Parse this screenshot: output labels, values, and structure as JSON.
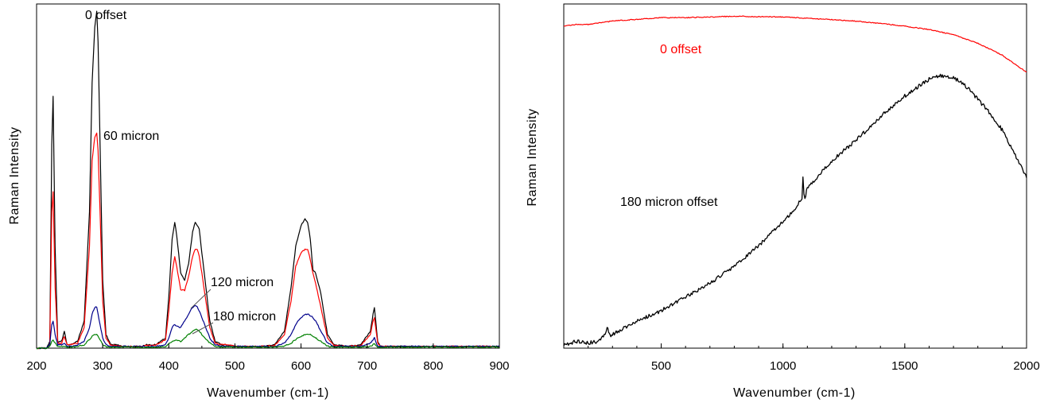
{
  "chart_data": [
    {
      "type": "line",
      "xlabel": "Wavenumber (cm-1)",
      "ylabel": "Raman Intensity",
      "xlim": [
        200,
        900
      ],
      "ylim": [
        0,
        100
      ],
      "xticks": [
        "200",
        "300",
        "400",
        "500",
        "600",
        "700",
        "800",
        "900"
      ],
      "grid": false,
      "annotations": [
        "0 offset",
        "60 micron",
        "120 micron",
        "180 micron"
      ],
      "series": [
        {
          "color": "#000000",
          "x": [
            200,
            215,
            220,
            223,
            225,
            228,
            232,
            238,
            242,
            246,
            252,
            262,
            272,
            280,
            284,
            288,
            291,
            293,
            296,
            300,
            305,
            312,
            320,
            330,
            345,
            360,
            365,
            380,
            395,
            400,
            405,
            409,
            412,
            418,
            424,
            430,
            436,
            440,
            443,
            446,
            450,
            456,
            462,
            470,
            480,
            490,
            500,
            520,
            540,
            560,
            575,
            585,
            592,
            600,
            606,
            610,
            614,
            618,
            622,
            630,
            640,
            650,
            670,
            690,
            705,
            709,
            711,
            713,
            716,
            720,
            740,
            770,
            800,
            830,
            860,
            900
          ],
          "y": [
            0,
            0,
            2,
            60,
            74,
            30,
            2,
            2,
            5,
            1,
            1,
            2,
            8,
            40,
            78,
            94,
            99,
            90,
            60,
            20,
            4,
            1,
            1,
            0.5,
            0.5,
            0.5,
            1,
            1,
            3,
            15,
            32,
            37,
            33,
            22,
            20,
            25,
            34,
            37,
            36,
            35,
            28,
            18,
            8,
            2,
            1,
            1,
            0.5,
            0.5,
            0.5,
            1,
            5,
            18,
            30,
            36,
            38,
            37,
            32,
            23,
            22,
            16,
            4,
            1,
            0.5,
            1,
            5,
            10,
            12,
            8,
            2,
            0.5,
            0.5,
            0.5,
            0.5,
            0.5,
            0.5,
            0.5
          ]
        },
        {
          "color": "#ff0000",
          "x": [
            200,
            215,
            220,
            223,
            225,
            228,
            232,
            238,
            242,
            246,
            252,
            262,
            272,
            280,
            284,
            288,
            291,
            293,
            296,
            300,
            305,
            312,
            320,
            330,
            345,
            360,
            365,
            380,
            395,
            400,
            405,
            409,
            412,
            418,
            424,
            430,
            436,
            440,
            443,
            446,
            450,
            456,
            462,
            470,
            480,
            490,
            500,
            520,
            540,
            560,
            575,
            585,
            592,
            600,
            606,
            610,
            614,
            618,
            622,
            630,
            640,
            650,
            670,
            690,
            705,
            709,
            711,
            713,
            716,
            720,
            740,
            770,
            800,
            830,
            860,
            900
          ],
          "y": [
            0,
            0,
            1,
            40,
            46,
            18,
            1.5,
            1.5,
            3.5,
            1,
            1,
            1.5,
            6,
            30,
            55,
            62,
            63,
            58,
            40,
            14,
            3,
            0.8,
            0.8,
            0.5,
            0.5,
            0.5,
            0.8,
            0.8,
            2.5,
            11,
            22,
            27,
            24,
            17,
            17,
            21,
            27,
            29,
            29,
            27,
            22,
            14,
            6,
            1.5,
            1,
            1,
            0.5,
            0.5,
            0.5,
            0.8,
            4,
            14,
            24,
            28,
            29,
            29,
            26,
            22,
            19,
            12,
            3,
            0.8,
            0.5,
            0.8,
            4,
            8,
            9,
            6,
            1.5,
            0.5,
            0.5,
            0.5,
            0.5,
            0.5,
            0.5,
            0.5
          ]
        },
        {
          "color": "#00008b",
          "x": [
            200,
            215,
            220,
            223,
            225,
            228,
            232,
            238,
            242,
            246,
            252,
            262,
            272,
            280,
            284,
            288,
            291,
            293,
            296,
            300,
            305,
            312,
            320,
            330,
            345,
            360,
            365,
            380,
            395,
            400,
            405,
            409,
            412,
            418,
            424,
            430,
            436,
            440,
            443,
            446,
            450,
            456,
            462,
            470,
            480,
            490,
            500,
            520,
            540,
            560,
            575,
            585,
            592,
            600,
            606,
            610,
            614,
            618,
            622,
            630,
            640,
            650,
            670,
            690,
            705,
            709,
            711,
            713,
            716,
            720,
            740,
            770,
            800,
            830,
            860,
            900
          ],
          "y": [
            0,
            0,
            1,
            7,
            8,
            4,
            1,
            1,
            1.5,
            0.5,
            0.5,
            1,
            2,
            6,
            10,
            12,
            12,
            10,
            7,
            3,
            1,
            0.5,
            0.5,
            0.5,
            0.5,
            0.5,
            0.5,
            0.5,
            1,
            3,
            6,
            7,
            6.5,
            6,
            8,
            10,
            12,
            12.5,
            12,
            11,
            9,
            6,
            3,
            1,
            0.5,
            0.5,
            0.5,
            0.5,
            0.5,
            0.5,
            1.5,
            4,
            7,
            9,
            10,
            10,
            9.5,
            9,
            8,
            5,
            1.5,
            0.5,
            0.5,
            0.5,
            1.5,
            2.5,
            3,
            2,
            0.5,
            0.5,
            0.5,
            0.5,
            0.5,
            0.5,
            0.5,
            0.5
          ]
        },
        {
          "color": "#008000",
          "x": [
            200,
            215,
            220,
            223,
            225,
            228,
            232,
            238,
            242,
            246,
            252,
            262,
            272,
            280,
            284,
            288,
            291,
            293,
            296,
            300,
            305,
            312,
            320,
            330,
            345,
            360,
            365,
            380,
            395,
            400,
            405,
            409,
            412,
            418,
            424,
            430,
            436,
            440,
            443,
            446,
            450,
            456,
            462,
            470,
            480,
            490,
            500,
            520,
            540,
            560,
            575,
            585,
            592,
            600,
            606,
            610,
            614,
            618,
            622,
            630,
            640,
            650,
            670,
            690,
            705,
            709,
            711,
            713,
            716,
            720,
            740,
            770,
            800,
            830,
            860,
            900
          ],
          "y": [
            0,
            0,
            0.5,
            2,
            2.5,
            1.5,
            0.5,
            0.5,
            0.5,
            0.3,
            0.3,
            0.5,
            1,
            2.5,
            3.5,
            4,
            4,
            3.5,
            2.5,
            1,
            0.5,
            0.3,
            0.3,
            0.3,
            0.3,
            0.3,
            0.3,
            0.3,
            0.5,
            1.2,
            2,
            2.2,
            2.2,
            2,
            3,
            4,
            5,
            5.5,
            5.5,
            5,
            4,
            2.8,
            1.5,
            0.5,
            0.3,
            0.3,
            0.3,
            0.3,
            0.3,
            0.3,
            0.6,
            1.5,
            2.5,
            3.5,
            4,
            4,
            4,
            3.5,
            3,
            2,
            0.6,
            0.3,
            0.3,
            0.3,
            0.5,
            1,
            1.2,
            0.8,
            0.3,
            0.3,
            0.3,
            0.3,
            0.3,
            0.3,
            0.3,
            0.3
          ]
        }
      ]
    },
    {
      "type": "line",
      "xlabel": "Wavenumber (cm-1)",
      "ylabel": "Raman Intensity",
      "xlim": [
        100,
        2000
      ],
      "ylim": [
        0,
        100
      ],
      "xticks": [
        "500",
        "1000",
        "1500",
        "2000"
      ],
      "grid": false,
      "annotations": [
        "0 offset",
        "180 micron offset"
      ],
      "series": [
        {
          "color": "#ff0000",
          "x": [
            100,
            150,
            200,
            300,
            400,
            500,
            600,
            700,
            800,
            900,
            1000,
            1100,
            1200,
            1300,
            1400,
            1500,
            1600,
            1700,
            1800,
            1900,
            2000
          ],
          "y": [
            94.5,
            95,
            95,
            96,
            96.5,
            97,
            97,
            97.2,
            97.4,
            97.3,
            97.2,
            96.8,
            96.4,
            96,
            95.3,
            94.5,
            93.5,
            92,
            89.5,
            86,
            81
          ]
        },
        {
          "color": "#000000",
          "x": [
            100,
            150,
            200,
            240,
            270,
            278,
            284,
            290,
            300,
            350,
            400,
            500,
            600,
            700,
            800,
            900,
            1000,
            1050,
            1078,
            1082,
            1086,
            1090,
            1100,
            1150,
            1200,
            1300,
            1400,
            1500,
            1600,
            1650,
            1700,
            1750,
            1800,
            1850,
            1900,
            1950,
            2000
          ],
          "y": [
            1,
            2,
            1.5,
            2,
            4,
            6.5,
            4.5,
            3.5,
            4,
            6,
            8,
            11,
            15,
            19,
            24,
            30,
            37,
            41,
            44,
            50,
            45,
            44,
            47,
            51,
            55,
            61,
            68,
            74,
            79,
            80,
            79.5,
            77,
            73,
            69,
            64,
            57,
            50
          ]
        }
      ]
    }
  ]
}
